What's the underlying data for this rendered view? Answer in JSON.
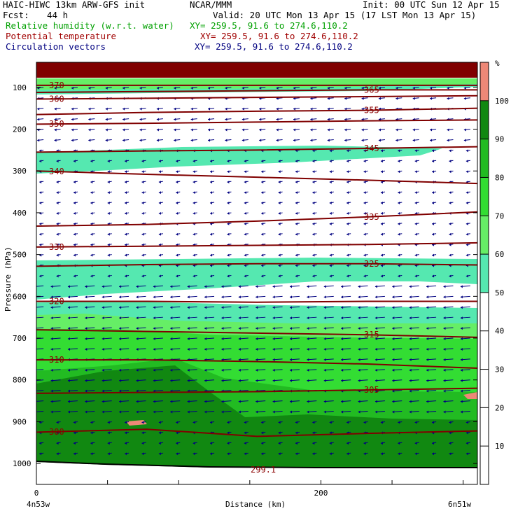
{
  "header": {
    "model": "HAIC-HIWC 13km ARW-GFS init",
    "org": "NCAR/MMM",
    "init": "Init: 00 UTC Sun 12 Apr 15",
    "fcst_label": "Fcst:",
    "fcst_value": "44 h",
    "valid": "Valid: 20 UTC Mon 13 Apr 15 (17 LST Mon 13 Apr 15)",
    "fields": [
      {
        "name": "Relative humidity (w.r.t. water)",
        "xy": "XY= 259.5, 91.6 to 274.6,110.2",
        "color": "#00a000"
      },
      {
        "name": "Potential temperature",
        "xy": "XY= 259.5, 91.6 to 274.6,110.2",
        "color": "#a00000"
      },
      {
        "name": "Circulation vectors",
        "xy": "XY= 259.5, 91.6 to 274.6,110.2",
        "color": "#000080"
      }
    ]
  },
  "chart_data": {
    "type": "cross-section",
    "xlabel": "Distance (km)",
    "ylabel": "Pressure (hPa)",
    "xlim": [
      0,
      310
    ],
    "ylim": [
      1050,
      40
    ],
    "x_ticks": [
      0,
      200
    ],
    "y_ticks": [
      100,
      200,
      300,
      400,
      500,
      600,
      700,
      800,
      900,
      1000
    ],
    "x_endpoints": [
      "4n53w",
      "6n51w"
    ],
    "colorbar": {
      "unit": "%",
      "ticks": [
        10,
        20,
        30,
        40,
        50,
        60,
        70,
        80,
        90,
        100
      ],
      "bands": [
        {
          "from": 50,
          "to": 60,
          "color": "#55e8b0"
        },
        {
          "from": 60,
          "to": 70,
          "color": "#66ee66"
        },
        {
          "from": 70,
          "to": 80,
          "color": "#33dd33"
        },
        {
          "from": 80,
          "to": 90,
          "color": "#22bb22"
        },
        {
          "from": 90,
          "to": 100,
          "color": "#118811"
        },
        {
          "from": 100,
          "to": 110,
          "color": "#ee8877"
        }
      ]
    },
    "theta_contours": [
      {
        "value": 370,
        "label": "370",
        "p": [
          95,
          95,
          95,
          95,
          95
        ]
      },
      {
        "value": 365,
        "label": "365",
        "p": [
          112,
          110,
          108,
          106,
          106
        ]
      },
      {
        "value": 360,
        "label": "360",
        "p": [
          128,
          126,
          124,
          122,
          120
        ]
      },
      {
        "value": 355,
        "label": "355",
        "p": [
          165,
          160,
          157,
          155,
          150
        ]
      },
      {
        "value": 350,
        "label": "350",
        "p": [
          188,
          186,
          183,
          180,
          178
        ]
      },
      {
        "value": 345,
        "label": "345",
        "p": [
          255,
          252,
          250,
          246,
          242
        ]
      },
      {
        "value": 340,
        "label": "340",
        "p": [
          300,
          308,
          315,
          322,
          330
        ]
      },
      {
        "value": 335,
        "label": "335",
        "p": [
          432,
          428,
          420,
          410,
          398
        ]
      },
      {
        "value": 330,
        "label": "330",
        "p": [
          482,
          480,
          478,
          476,
          472
        ]
      },
      {
        "value": 325,
        "label": "325",
        "p": [
          528,
          524,
          522,
          522,
          525
        ]
      },
      {
        "value": 320,
        "label": "320",
        "p": [
          612,
          612,
          614,
          612,
          612
        ]
      },
      {
        "value": 315,
        "label": "315",
        "p": [
          680,
          684,
          688,
          692,
          698
        ]
      },
      {
        "value": 310,
        "label": "310",
        "p": [
          752,
          752,
          756,
          762,
          772
        ]
      },
      {
        "value": 305,
        "label": "305",
        "p": [
          832,
          830,
          828,
          824,
          820
        ]
      },
      {
        "value": 300,
        "label": "300",
        "p": [
          925,
          918,
          935,
          928,
          922
        ]
      }
    ],
    "terrain_label": "299.1",
    "vectors_direction": "westward"
  }
}
